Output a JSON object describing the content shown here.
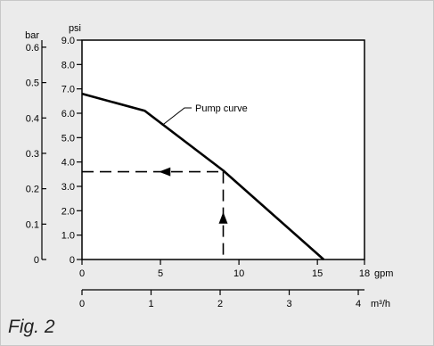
{
  "caption": "Fig. 2",
  "colors": {
    "background": "#ebebeb",
    "plot_bg": "#ffffff",
    "ink": "#000000"
  },
  "chart_data": {
    "type": "line",
    "title": "",
    "grid": false,
    "x_axes": [
      {
        "unit": "gpm",
        "ticks": [
          0,
          5,
          10,
          15,
          18
        ],
        "tick_labels": [
          "0",
          "5",
          "10",
          "15",
          "18"
        ],
        "range": [
          0,
          18
        ]
      },
      {
        "unit": "m³/h",
        "ticks": [
          0,
          1,
          2,
          3,
          4
        ],
        "tick_labels": [
          "0",
          "1",
          "2",
          "3",
          "4"
        ],
        "range": [
          0,
          4.09
        ]
      }
    ],
    "y_axes": [
      {
        "unit": "psi",
        "ticks": [
          0,
          1,
          2,
          3,
          4,
          5,
          6,
          7,
          8,
          9
        ],
        "tick_labels": [
          "0",
          "1.0",
          "2.0",
          "3.0",
          "4.0",
          "5.0",
          "6.0",
          "7.0",
          "8.0",
          "9.0"
        ],
        "range": [
          0,
          9
        ]
      },
      {
        "unit": "bar",
        "ticks": [
          0,
          0.1,
          0.2,
          0.3,
          0.4,
          0.5,
          0.6
        ],
        "tick_labels": [
          "0",
          "0.1",
          "0.2",
          "0.3",
          "0.4",
          "0.5",
          "0.6"
        ],
        "range": [
          0,
          0.62
        ]
      }
    ],
    "series": [
      {
        "name": "Pump curve",
        "x_unit": "gpm",
        "y_unit": "psi",
        "x": [
          0,
          4,
          9,
          15.4
        ],
        "y": [
          6.8,
          6.1,
          3.65,
          0
        ]
      }
    ],
    "annotations": [
      {
        "text": "Pump curve",
        "points_to": {
          "x": 5.1,
          "y": 5.5
        }
      }
    ],
    "operating_point": {
      "x": 9,
      "y": 3.6,
      "style": "dashed",
      "arrows": [
        "up",
        "left"
      ]
    }
  }
}
